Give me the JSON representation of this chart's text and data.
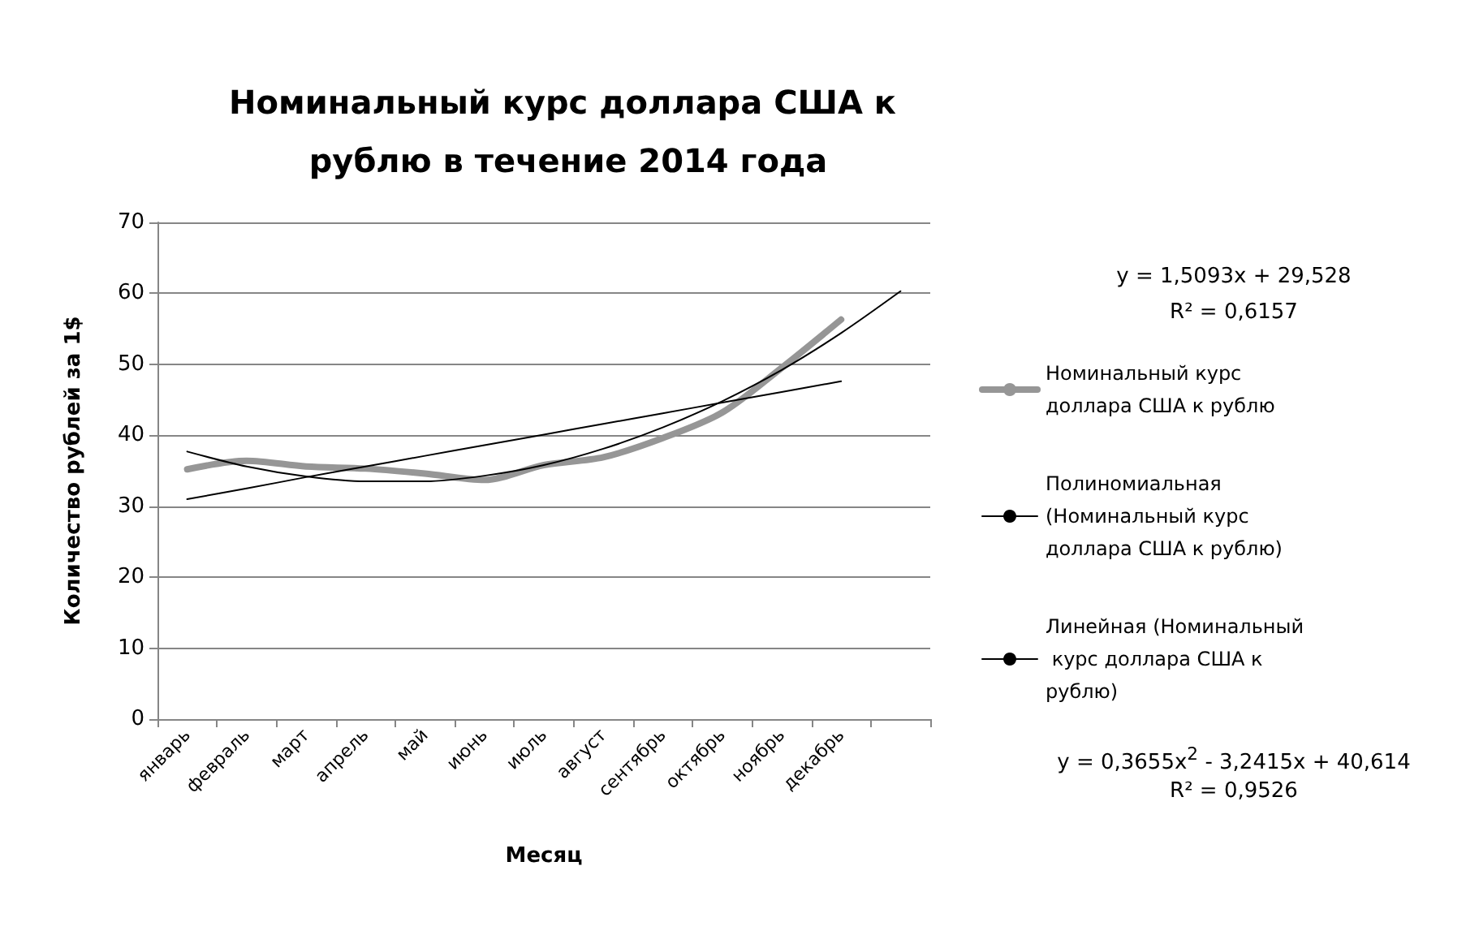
{
  "chart_data": {
    "type": "line",
    "title": "Номинальный курс доллара США к рублю в течение 2014 года",
    "xlabel": "Месяц",
    "ylabel": "Количество рублей за 1$",
    "categories": [
      "январь",
      "февраль",
      "март",
      "апрель",
      "май",
      "июнь",
      "июль",
      "август",
      "сентябрь",
      "октябрь",
      "ноябрь",
      "декабрь",
      null
    ],
    "series": [
      {
        "name": "Номинальный курс доллара США к рублю",
        "color": "#969696",
        "values": [
          35.2,
          36.4,
          35.6,
          35.3,
          34.6,
          33.7,
          35.8,
          36.9,
          39.6,
          43.2,
          49.5,
          56.3,
          null
        ]
      },
      {
        "name": "Полиномиальная (Номинальный курс доллара США к рублю)",
        "color": "#000000",
        "values": [
          37.7,
          35.6,
          34.2,
          33.5,
          33.5,
          34.3,
          35.8,
          38.1,
          41.1,
          44.8,
          49.2,
          54.4,
          60.3
        ]
      },
      {
        "name": "Линейная (Номинальный курс доллара США к рублю)",
        "color": "#000000",
        "values": [
          31.0,
          32.5,
          34.1,
          35.6,
          37.1,
          38.6,
          40.1,
          41.6,
          43.1,
          44.6,
          46.1,
          47.6,
          null
        ]
      }
    ],
    "ylim": [
      0,
      70
    ],
    "yticks": [
      0,
      10,
      20,
      30,
      40,
      50,
      60,
      70
    ],
    "grid": "y",
    "legend": "right",
    "marker": "none",
    "line_style": "solid",
    "annotations": [
      "y = 1,5093x + 29,528",
      "R² = 0,6157",
      "y = 0,3655x$^{2}$ - 3,2415x + 40,614",
      "R² = 0,9526"
    ]
  }
}
